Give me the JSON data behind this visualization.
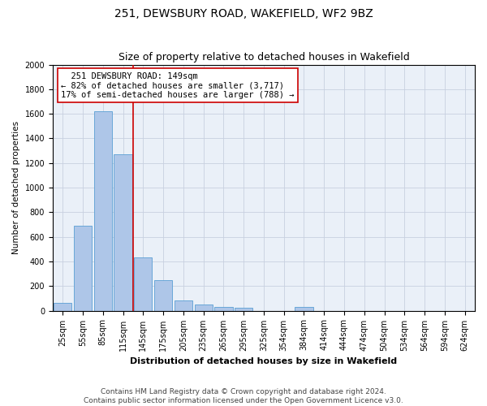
{
  "title": "251, DEWSBURY ROAD, WAKEFIELD, WF2 9BZ",
  "subtitle": "Size of property relative to detached houses in Wakefield",
  "xlabel": "Distribution of detached houses by size in Wakefield",
  "ylabel": "Number of detached properties",
  "categories": [
    "25sqm",
    "55sqm",
    "85sqm",
    "115sqm",
    "145sqm",
    "175sqm",
    "205sqm",
    "235sqm",
    "265sqm",
    "295sqm",
    "325sqm",
    "354sqm",
    "384sqm",
    "414sqm",
    "444sqm",
    "474sqm",
    "504sqm",
    "534sqm",
    "564sqm",
    "594sqm",
    "624sqm"
  ],
  "values": [
    65,
    690,
    1620,
    1270,
    430,
    250,
    85,
    50,
    30,
    22,
    0,
    0,
    30,
    0,
    0,
    0,
    0,
    0,
    0,
    0,
    0
  ],
  "bar_color": "#aec6e8",
  "bar_edge_color": "#5a9fd4",
  "highlight_line_index": 4,
  "highlight_line_color": "#cc0000",
  "annotation_text_line1": "  251 DEWSBURY ROAD: 149sqm",
  "annotation_text_line2": "← 82% of detached houses are smaller (3,717)",
  "annotation_text_line3": "17% of semi-detached houses are larger (788) →",
  "annotation_box_color": "#ffffff",
  "annotation_box_edge_color": "#cc0000",
  "ylim": [
    0,
    2000
  ],
  "yticks": [
    0,
    200,
    400,
    600,
    800,
    1000,
    1200,
    1400,
    1600,
    1800,
    2000
  ],
  "background_color": "#ffffff",
  "plot_bg_color": "#eaf0f8",
  "grid_color": "#c8d0e0",
  "footer_text": "Contains HM Land Registry data © Crown copyright and database right 2024.\nContains public sector information licensed under the Open Government Licence v3.0.",
  "title_fontsize": 10,
  "subtitle_fontsize": 9,
  "axis_label_fontsize": 8,
  "tick_fontsize": 7,
  "annotation_fontsize": 7.5,
  "footer_fontsize": 6.5,
  "ylabel_fontsize": 7.5
}
